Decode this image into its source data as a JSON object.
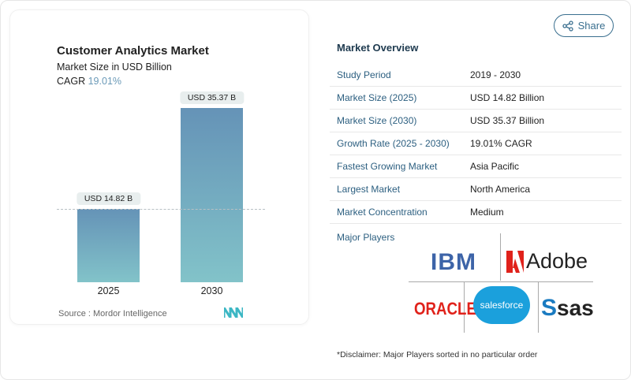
{
  "chart": {
    "title": "Customer Analytics Market",
    "subtitle": "Market Size in USD Billion",
    "cagr_label": "CAGR",
    "cagr_value": "19.01%",
    "source": "Source :  Mordor Intelligence"
  },
  "chart_data": {
    "type": "bar",
    "categories": [
      "2025",
      "2030"
    ],
    "values": [
      14.82,
      35.37
    ],
    "data_labels": [
      "USD 14.82 B",
      "USD 35.37 B"
    ],
    "title": "Customer Analytics Market",
    "ylabel": "Market Size in USD Billion",
    "colors": [
      "#6593b7",
      "#82c3c9"
    ]
  },
  "share": {
    "label": "Share",
    "icon": "share-icon"
  },
  "overview": {
    "title": "Market Overview",
    "rows": [
      {
        "k": "Study Period",
        "v": "2019 - 2030"
      },
      {
        "k": "Market Size (2025)",
        "v": "USD 14.82 Billion"
      },
      {
        "k": "Market Size (2030)",
        "v": "USD 35.37 Billion"
      },
      {
        "k": "Growth Rate (2025 - 2030)",
        "v": "19.01% CAGR"
      },
      {
        "k": "Fastest Growing Market",
        "v": "Asia Pacific"
      },
      {
        "k": "Largest Market",
        "v": "North America"
      },
      {
        "k": "Market Concentration",
        "v": "Medium"
      }
    ]
  },
  "players": {
    "title": "Major Players",
    "logos": [
      "IBM",
      "Adobe",
      "ORACLE",
      "salesforce",
      "sas"
    ]
  },
  "disclaimer": "*Disclaimer: Major Players sorted in no particular order"
}
